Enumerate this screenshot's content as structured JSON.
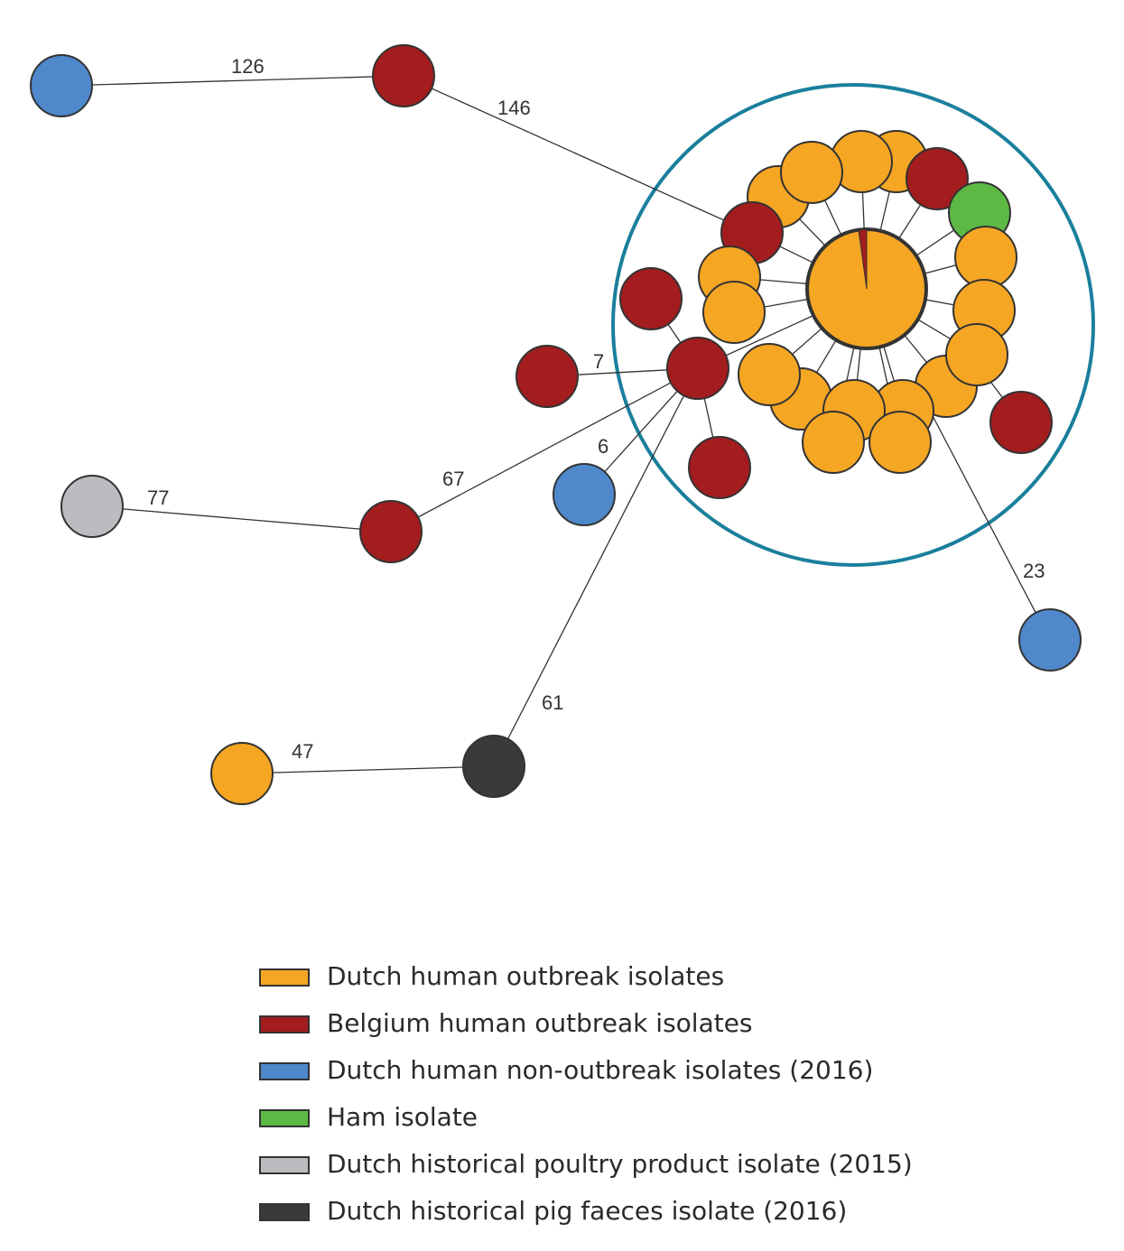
{
  "colors": {
    "dutch_outbreak": "#F5A623",
    "belgium_outbreak": "#A31C1E",
    "dutch_non_outbreak": "#4F88CB",
    "ham": "#5DB944",
    "poultry": "#BCBCC0",
    "pig": "#3A3A3C",
    "cluster_ring": "#1A7F9C"
  },
  "edge_labels": {
    "e126": "126",
    "e146": "146",
    "e7": "7",
    "e6": "6",
    "e67": "67",
    "e77": "77",
    "e61": "61",
    "e47": "47",
    "e23": "23"
  },
  "legend": {
    "items": [
      {
        "label": "Dutch human outbreak isolates",
        "color": "#F5A623"
      },
      {
        "label": "Belgium human outbreak isolates",
        "color": "#A31C1E"
      },
      {
        "label": "Dutch human non-outbreak isolates (2016)",
        "color": "#4F88CB"
      },
      {
        "label": "Ham isolate",
        "color": "#5DB944"
      },
      {
        "label": "Dutch historical poultry product isolate (2015)",
        "color": "#BCBCC0"
      },
      {
        "label": "Dutch historical pig faeces isolate (2016)",
        "color": "#3A3A3C"
      }
    ]
  }
}
